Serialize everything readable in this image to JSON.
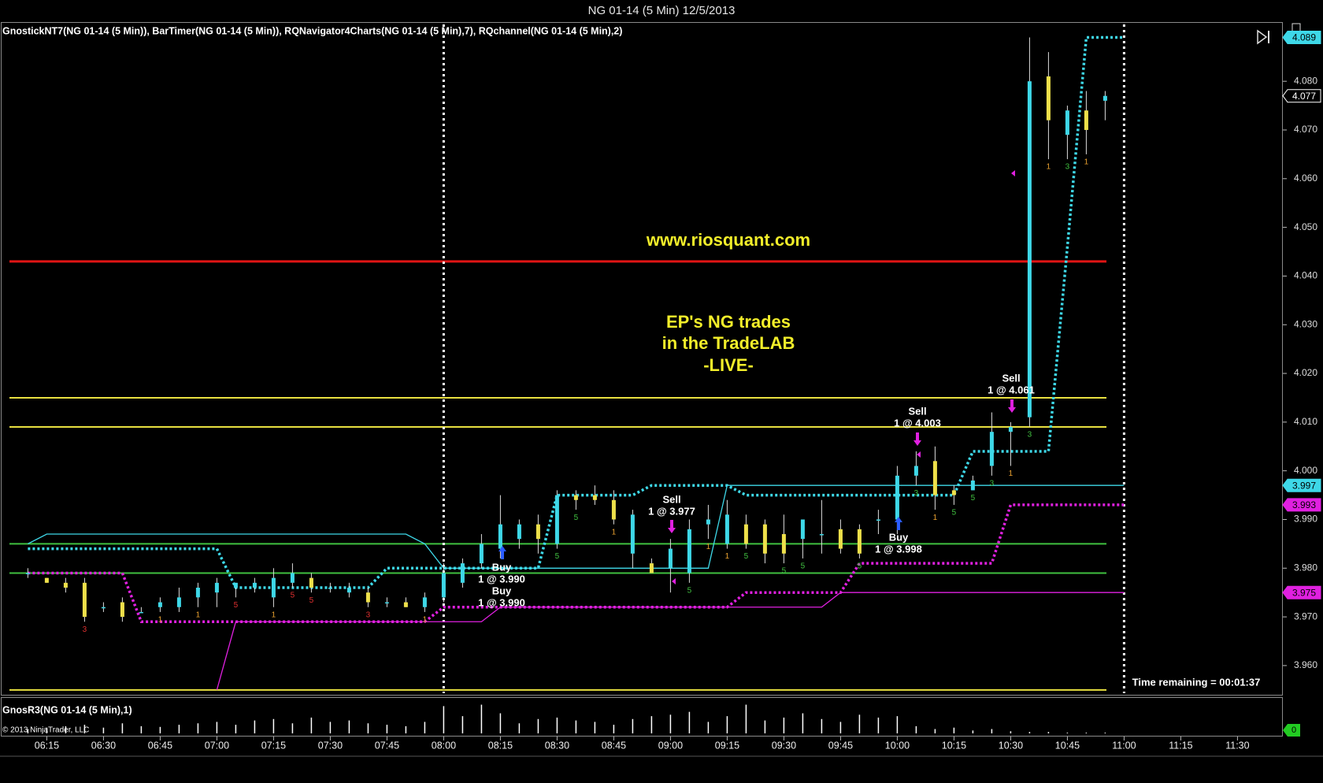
{
  "chart_data": {
    "type": "candlestick",
    "title": "NG 01-14 (5 Min)  12/5/2013",
    "indicator_label": "GnostickNT7(NG 01-14 (5 Min)), BarTimer(NG 01-14 (5 Min)), RQNavigator4Charts(NG 01-14 (5 Min),7), RQchannel(NG 01-14 (5 Min),2)",
    "lower_panel_label": "GnosR3(NG 01-14 (5 Min),1)",
    "copyright": "© 2013 NinjaTrader, LLC",
    "time_remaining": "Time remaining = 00:01:37",
    "watermark": "www.riosquant.com",
    "headline": [
      "EP's NG trades",
      "in the TradeLAB",
      "-LIVE-"
    ],
    "trades": [
      {
        "side": "Buy",
        "detail": "1 @ 3.990"
      },
      {
        "side": "Buy",
        "detail": "1 @ 3.990"
      },
      {
        "side": "Sell",
        "detail": "1 @ 3.977"
      },
      {
        "side": "Buy",
        "detail": "1 @ 3.998"
      },
      {
        "side": "Sell",
        "detail": "1 @ 4.003"
      },
      {
        "side": "Sell",
        "detail": "1 @ 4.061"
      }
    ],
    "categories": [
      null,
      "06:15",
      null,
      null,
      "06:30",
      null,
      null,
      "06:45",
      null,
      null,
      "07:00",
      null,
      null,
      "07:15",
      null,
      null,
      "07:30",
      null,
      null,
      "07:45",
      null,
      null,
      "08:00",
      null,
      null,
      "08:15",
      null,
      null,
      "08:30",
      null,
      null,
      "08:45",
      null,
      null,
      "09:00",
      null,
      null,
      "09:15",
      null,
      null,
      "09:30",
      null,
      null,
      "09:45",
      null,
      null,
      "10:00",
      null,
      null,
      "10:15",
      null,
      null,
      "10:30",
      null,
      null,
      "10:45",
      null,
      null,
      "11:00",
      null,
      null,
      "11:15",
      null,
      null,
      "11:30"
    ],
    "up_color": "#3ed8e8",
    "down_color": "#eee04a",
    "open": [
      3.979,
      3.978,
      3.977,
      3.977,
      3.972,
      3.973,
      3.971,
      3.972,
      3.972,
      3.974,
      3.975,
      3.976,
      3.976,
      3.974,
      3.977,
      3.978,
      3.976,
      3.975,
      3.975,
      3.973,
      3.973,
      3.972,
      3.974,
      3.977,
      3.981,
      3.984,
      3.986,
      3.989,
      3.985,
      3.995,
      3.995,
      3.994,
      3.983,
      3.981,
      3.98,
      3.979,
      3.989,
      3.985,
      3.989,
      3.989,
      3.987,
      3.986,
      3.987,
      3.988,
      3.988,
      3.99,
      3.99,
      3.999,
      4.002,
      3.996,
      3.996,
      4.001,
      4.008,
      4.011,
      4.081,
      4.069,
      4.074,
      4.076,
      null,
      null,
      null,
      null,
      null,
      null,
      null
    ],
    "high": [
      3.98,
      3.978,
      3.978,
      3.978,
      3.973,
      3.974,
      3.972,
      3.974,
      3.976,
      3.977,
      3.978,
      3.977,
      3.978,
      3.98,
      3.981,
      3.979,
      3.977,
      3.977,
      3.976,
      3.974,
      3.974,
      3.975,
      3.981,
      3.982,
      3.987,
      3.995,
      3.99,
      3.991,
      3.996,
      3.996,
      3.997,
      3.996,
      3.992,
      3.982,
      3.986,
      3.99,
      3.993,
      3.994,
      3.991,
      3.99,
      3.991,
      3.99,
      3.994,
      3.99,
      3.989,
      3.992,
      4.001,
      4.004,
      4.005,
      3.997,
      3.999,
      4.012,
      4.01,
      4.089,
      4.086,
      4.075,
      4.078,
      4.078,
      null,
      null,
      null,
      null,
      null,
      null,
      null
    ],
    "low": [
      3.978,
      3.977,
      3.975,
      3.969,
      3.971,
      3.969,
      3.971,
      3.971,
      3.971,
      3.972,
      3.972,
      3.974,
      3.975,
      3.972,
      3.976,
      3.975,
      3.975,
      3.974,
      3.972,
      3.972,
      3.972,
      3.971,
      3.973,
      3.976,
      3.98,
      3.982,
      3.984,
      3.983,
      3.984,
      3.992,
      3.993,
      3.989,
      3.98,
      3.979,
      3.975,
      3.977,
      3.986,
      3.984,
      3.984,
      3.981,
      3.981,
      3.982,
      3.983,
      3.983,
      3.982,
      3.987,
      3.987,
      3.997,
      3.992,
      3.993,
      3.996,
      3.999,
      4.001,
      4.009,
      4.064,
      4.064,
      4.065,
      4.072,
      null,
      null,
      null,
      null,
      null,
      null,
      null
    ],
    "close": [
      3.979,
      3.977,
      3.976,
      3.97,
      3.972,
      3.97,
      3.971,
      3.973,
      3.974,
      3.976,
      3.977,
      3.977,
      3.977,
      3.978,
      3.979,
      3.976,
      3.976,
      3.976,
      3.973,
      3.973,
      3.972,
      3.974,
      3.979,
      3.981,
      3.985,
      3.989,
      3.989,
      3.986,
      3.995,
      3.994,
      3.994,
      3.99,
      3.991,
      3.979,
      3.984,
      3.988,
      3.99,
      3.991,
      3.985,
      3.983,
      3.983,
      3.99,
      3.987,
      3.984,
      3.983,
      3.99,
      3.999,
      4.001,
      3.995,
      3.995,
      3.998,
      4.008,
      4.009,
      4.08,
      4.072,
      4.074,
      4.07,
      4.077,
      null,
      null,
      null,
      null,
      null,
      null,
      null
    ],
    "count_labels": [
      null,
      null,
      null,
      3,
      null,
      null,
      null,
      1,
      null,
      1,
      null,
      5,
      null,
      1,
      5,
      5,
      null,
      null,
      3,
      null,
      null,
      1,
      null,
      null,
      null,
      null,
      null,
      null,
      5,
      5,
      null,
      1,
      null,
      null,
      null,
      5,
      1,
      1,
      5,
      null,
      5,
      5,
      null,
      null,
      5,
      null,
      null,
      3,
      1,
      5,
      5,
      3,
      1,
      3,
      1,
      3,
      1,
      null,
      null,
      null,
      null,
      null,
      null,
      null,
      null
    ],
    "series": [
      {
        "color": "#3ed8e8",
        "style": "dotted",
        "values": [
          3.984,
          3.984,
          3.984,
          3.984,
          3.984,
          3.984,
          3.984,
          3.984,
          3.984,
          3.984,
          3.984,
          3.976,
          3.976,
          3.976,
          3.976,
          3.976,
          3.976,
          3.976,
          3.976,
          3.98,
          3.98,
          3.98,
          3.98,
          3.98,
          3.98,
          3.98,
          3.98,
          3.98,
          3.995,
          3.995,
          3.995,
          3.995,
          3.995,
          3.997,
          3.997,
          3.997,
          3.997,
          3.997,
          3.995,
          3.995,
          3.995,
          3.995,
          3.995,
          3.995,
          3.995,
          3.995,
          3.995,
          3.995,
          3.995,
          3.995,
          4.004,
          4.004,
          4.004,
          4.004,
          4.004,
          4.046,
          4.089,
          4.089,
          4.089,
          null,
          null,
          null,
          null,
          null,
          null
        ]
      },
      {
        "color": "#e020e0",
        "style": "dotted",
        "values": [
          3.979,
          3.979,
          3.979,
          3.979,
          3.979,
          3.979,
          3.969,
          3.969,
          3.969,
          3.969,
          3.969,
          3.969,
          3.969,
          3.969,
          3.969,
          3.969,
          3.969,
          3.969,
          3.969,
          3.969,
          3.969,
          3.969,
          3.972,
          3.972,
          3.972,
          3.972,
          3.972,
          3.972,
          3.972,
          3.972,
          3.972,
          3.972,
          3.972,
          3.972,
          3.972,
          3.972,
          3.972,
          3.972,
          3.975,
          3.975,
          3.975,
          3.975,
          3.975,
          3.975,
          3.981,
          3.981,
          3.981,
          3.981,
          3.981,
          3.981,
          3.981,
          3.981,
          3.993,
          3.993,
          3.993,
          3.993,
          3.993,
          3.993,
          3.993,
          null,
          null,
          null,
          null,
          null,
          null
        ]
      },
      {
        "color": "#3ed8e8",
        "style": "thin",
        "values": [
          3.985,
          3.987,
          3.987,
          3.987,
          3.987,
          3.987,
          3.987,
          3.987,
          3.987,
          3.987,
          3.987,
          3.987,
          3.987,
          3.987,
          3.987,
          3.987,
          3.987,
          3.987,
          3.987,
          3.987,
          3.987,
          3.985,
          3.98,
          3.98,
          3.98,
          3.98,
          3.98,
          3.98,
          3.98,
          3.98,
          3.98,
          3.98,
          3.98,
          3.98,
          3.98,
          3.98,
          3.98,
          3.997,
          3.997,
          3.997,
          3.997,
          3.997,
          3.997,
          3.997,
          3.997,
          3.997,
          3.997,
          3.997,
          3.997,
          3.997,
          3.997,
          3.997,
          3.997,
          3.997,
          3.997,
          3.997,
          3.997,
          3.997,
          3.997,
          null,
          null,
          null,
          null,
          null,
          null
        ]
      },
      {
        "color": "#e020e0",
        "style": "thin",
        "values": [
          null,
          null,
          null,
          null,
          null,
          null,
          null,
          null,
          null,
          null,
          3.955,
          3.969,
          3.969,
          3.969,
          3.969,
          3.969,
          3.969,
          3.969,
          3.969,
          3.969,
          3.969,
          3.969,
          3.969,
          3.969,
          3.969,
          3.972,
          3.972,
          3.972,
          3.972,
          3.972,
          3.972,
          3.972,
          3.972,
          3.972,
          3.972,
          3.972,
          3.972,
          3.972,
          3.972,
          3.972,
          3.972,
          3.972,
          3.972,
          3.975,
          3.975,
          3.975,
          3.975,
          3.975,
          3.975,
          3.975,
          3.975,
          3.975,
          3.975,
          3.975,
          3.975,
          3.975,
          3.975,
          3.975,
          3.975,
          null,
          null,
          null,
          null,
          null,
          null
        ]
      }
    ],
    "levels": [
      {
        "value": 4.043,
        "color": "#e01414"
      },
      {
        "value": 4.015,
        "color": "#e8e040"
      },
      {
        "value": 4.009,
        "color": "#e8e040"
      },
      {
        "value": 3.955,
        "color": "#e8e040"
      },
      {
        "value": 3.985,
        "color": "#3fbf3f"
      },
      {
        "value": 3.979,
        "color": "#3fbf3f"
      }
    ],
    "price_markers": [
      {
        "value": 4.089,
        "color": "#3ed8e8"
      },
      {
        "value": 4.077,
        "color": "#000000"
      },
      {
        "value": 3.997,
        "color": "#3ed8e8"
      },
      {
        "value": 3.993,
        "color": "#e020e0"
      },
      {
        "value": 3.975,
        "color": "#e020e0"
      }
    ],
    "ylim": [
      3.954,
      4.092
    ],
    "yticks": [
      {
        "value": 3.96,
        "label": "3.960"
      },
      {
        "value": 3.97,
        "label": "3.970"
      },
      {
        "value": 3.98,
        "label": "3.980"
      },
      {
        "value": 3.99,
        "label": "3.990"
      },
      {
        "value": 4.0,
        "label": "4.000"
      },
      {
        "value": 4.01,
        "label": "4.010"
      },
      {
        "value": 4.02,
        "label": "4.020"
      },
      {
        "value": 4.03,
        "label": "4.030"
      },
      {
        "value": 4.04,
        "label": "4.040"
      },
      {
        "value": 4.05,
        "label": "4.050"
      },
      {
        "value": 4.06,
        "label": "4.060"
      },
      {
        "value": 4.07,
        "label": "4.070"
      },
      {
        "value": 4.08,
        "label": "4.080"
      }
    ],
    "volume": {
      "color": "#ffffff",
      "ylim": [
        0,
        45
      ],
      "marker": 0,
      "marker_color": "#22cc22",
      "values": [
        6,
        8,
        10,
        12,
        8,
        14,
        10,
        9,
        12,
        14,
        16,
        12,
        18,
        20,
        14,
        22,
        16,
        18,
        14,
        12,
        10,
        16,
        38,
        24,
        40,
        28,
        14,
        20,
        22,
        18,
        16,
        12,
        20,
        24,
        26,
        30,
        16,
        24,
        40,
        18,
        22,
        28,
        20,
        16,
        26,
        22,
        24,
        10,
        6,
        8,
        4,
        6,
        3,
        2,
        2,
        1,
        1,
        1,
        null,
        null,
        null,
        null,
        null,
        null,
        null
      ]
    },
    "session_lines": [
      22,
      58
    ]
  }
}
